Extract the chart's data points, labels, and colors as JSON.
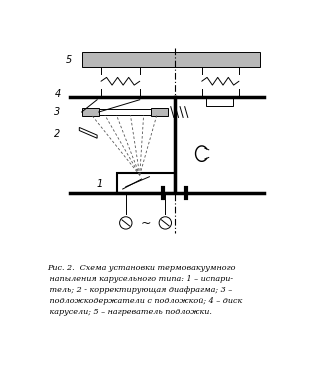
{
  "caption": "Рис. 2.  Схема установки термовакуумного\n напыления карусельного типа: 1 – испари-\n тель; 2 - корректирующая диафрагма; 3 –\n подложкодержатели с подложкой; 4 – диск\n карусели; 5 – нагреватель подложки.",
  "bg_color": "#ffffff",
  "line_color": "#000000",
  "gray_fill": "#b8b8b8",
  "light_gray": "#d0d0d0"
}
